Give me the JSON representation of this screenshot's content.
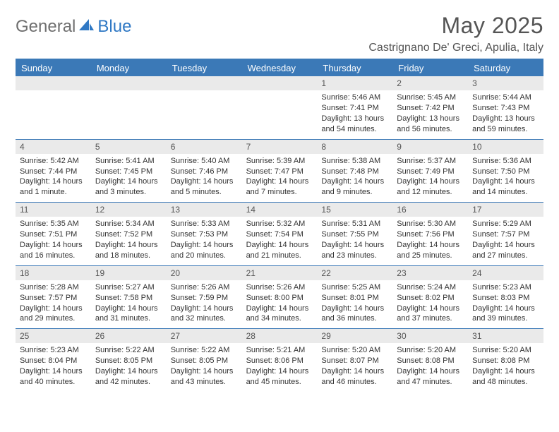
{
  "brand": {
    "word1": "General",
    "word2": "Blue"
  },
  "title": "May 2025",
  "location": "Castrignano De' Greci, Apulia, Italy",
  "colors": {
    "header_bg": "#3b79b7",
    "header_text": "#ffffff",
    "daynum_bg": "#eaeaea",
    "rule": "#3b79b7",
    "body_text": "#333333",
    "title_text": "#555555"
  },
  "dayNames": [
    "Sunday",
    "Monday",
    "Tuesday",
    "Wednesday",
    "Thursday",
    "Friday",
    "Saturday"
  ],
  "weeks": [
    [
      {
        "n": "",
        "sunrise": "",
        "sunset": "",
        "daylight": ""
      },
      {
        "n": "",
        "sunrise": "",
        "sunset": "",
        "daylight": ""
      },
      {
        "n": "",
        "sunrise": "",
        "sunset": "",
        "daylight": ""
      },
      {
        "n": "",
        "sunrise": "",
        "sunset": "",
        "daylight": ""
      },
      {
        "n": "1",
        "sunrise": "Sunrise: 5:46 AM",
        "sunset": "Sunset: 7:41 PM",
        "daylight": "Daylight: 13 hours and 54 minutes."
      },
      {
        "n": "2",
        "sunrise": "Sunrise: 5:45 AM",
        "sunset": "Sunset: 7:42 PM",
        "daylight": "Daylight: 13 hours and 56 minutes."
      },
      {
        "n": "3",
        "sunrise": "Sunrise: 5:44 AM",
        "sunset": "Sunset: 7:43 PM",
        "daylight": "Daylight: 13 hours and 59 minutes."
      }
    ],
    [
      {
        "n": "4",
        "sunrise": "Sunrise: 5:42 AM",
        "sunset": "Sunset: 7:44 PM",
        "daylight": "Daylight: 14 hours and 1 minute."
      },
      {
        "n": "5",
        "sunrise": "Sunrise: 5:41 AM",
        "sunset": "Sunset: 7:45 PM",
        "daylight": "Daylight: 14 hours and 3 minutes."
      },
      {
        "n": "6",
        "sunrise": "Sunrise: 5:40 AM",
        "sunset": "Sunset: 7:46 PM",
        "daylight": "Daylight: 14 hours and 5 minutes."
      },
      {
        "n": "7",
        "sunrise": "Sunrise: 5:39 AM",
        "sunset": "Sunset: 7:47 PM",
        "daylight": "Daylight: 14 hours and 7 minutes."
      },
      {
        "n": "8",
        "sunrise": "Sunrise: 5:38 AM",
        "sunset": "Sunset: 7:48 PM",
        "daylight": "Daylight: 14 hours and 9 minutes."
      },
      {
        "n": "9",
        "sunrise": "Sunrise: 5:37 AM",
        "sunset": "Sunset: 7:49 PM",
        "daylight": "Daylight: 14 hours and 12 minutes."
      },
      {
        "n": "10",
        "sunrise": "Sunrise: 5:36 AM",
        "sunset": "Sunset: 7:50 PM",
        "daylight": "Daylight: 14 hours and 14 minutes."
      }
    ],
    [
      {
        "n": "11",
        "sunrise": "Sunrise: 5:35 AM",
        "sunset": "Sunset: 7:51 PM",
        "daylight": "Daylight: 14 hours and 16 minutes."
      },
      {
        "n": "12",
        "sunrise": "Sunrise: 5:34 AM",
        "sunset": "Sunset: 7:52 PM",
        "daylight": "Daylight: 14 hours and 18 minutes."
      },
      {
        "n": "13",
        "sunrise": "Sunrise: 5:33 AM",
        "sunset": "Sunset: 7:53 PM",
        "daylight": "Daylight: 14 hours and 20 minutes."
      },
      {
        "n": "14",
        "sunrise": "Sunrise: 5:32 AM",
        "sunset": "Sunset: 7:54 PM",
        "daylight": "Daylight: 14 hours and 21 minutes."
      },
      {
        "n": "15",
        "sunrise": "Sunrise: 5:31 AM",
        "sunset": "Sunset: 7:55 PM",
        "daylight": "Daylight: 14 hours and 23 minutes."
      },
      {
        "n": "16",
        "sunrise": "Sunrise: 5:30 AM",
        "sunset": "Sunset: 7:56 PM",
        "daylight": "Daylight: 14 hours and 25 minutes."
      },
      {
        "n": "17",
        "sunrise": "Sunrise: 5:29 AM",
        "sunset": "Sunset: 7:57 PM",
        "daylight": "Daylight: 14 hours and 27 minutes."
      }
    ],
    [
      {
        "n": "18",
        "sunrise": "Sunrise: 5:28 AM",
        "sunset": "Sunset: 7:57 PM",
        "daylight": "Daylight: 14 hours and 29 minutes."
      },
      {
        "n": "19",
        "sunrise": "Sunrise: 5:27 AM",
        "sunset": "Sunset: 7:58 PM",
        "daylight": "Daylight: 14 hours and 31 minutes."
      },
      {
        "n": "20",
        "sunrise": "Sunrise: 5:26 AM",
        "sunset": "Sunset: 7:59 PM",
        "daylight": "Daylight: 14 hours and 32 minutes."
      },
      {
        "n": "21",
        "sunrise": "Sunrise: 5:26 AM",
        "sunset": "Sunset: 8:00 PM",
        "daylight": "Daylight: 14 hours and 34 minutes."
      },
      {
        "n": "22",
        "sunrise": "Sunrise: 5:25 AM",
        "sunset": "Sunset: 8:01 PM",
        "daylight": "Daylight: 14 hours and 36 minutes."
      },
      {
        "n": "23",
        "sunrise": "Sunrise: 5:24 AM",
        "sunset": "Sunset: 8:02 PM",
        "daylight": "Daylight: 14 hours and 37 minutes."
      },
      {
        "n": "24",
        "sunrise": "Sunrise: 5:23 AM",
        "sunset": "Sunset: 8:03 PM",
        "daylight": "Daylight: 14 hours and 39 minutes."
      }
    ],
    [
      {
        "n": "25",
        "sunrise": "Sunrise: 5:23 AM",
        "sunset": "Sunset: 8:04 PM",
        "daylight": "Daylight: 14 hours and 40 minutes."
      },
      {
        "n": "26",
        "sunrise": "Sunrise: 5:22 AM",
        "sunset": "Sunset: 8:05 PM",
        "daylight": "Daylight: 14 hours and 42 minutes."
      },
      {
        "n": "27",
        "sunrise": "Sunrise: 5:22 AM",
        "sunset": "Sunset: 8:05 PM",
        "daylight": "Daylight: 14 hours and 43 minutes."
      },
      {
        "n": "28",
        "sunrise": "Sunrise: 5:21 AM",
        "sunset": "Sunset: 8:06 PM",
        "daylight": "Daylight: 14 hours and 45 minutes."
      },
      {
        "n": "29",
        "sunrise": "Sunrise: 5:20 AM",
        "sunset": "Sunset: 8:07 PM",
        "daylight": "Daylight: 14 hours and 46 minutes."
      },
      {
        "n": "30",
        "sunrise": "Sunrise: 5:20 AM",
        "sunset": "Sunset: 8:08 PM",
        "daylight": "Daylight: 14 hours and 47 minutes."
      },
      {
        "n": "31",
        "sunrise": "Sunrise: 5:20 AM",
        "sunset": "Sunset: 8:08 PM",
        "daylight": "Daylight: 14 hours and 48 minutes."
      }
    ]
  ]
}
